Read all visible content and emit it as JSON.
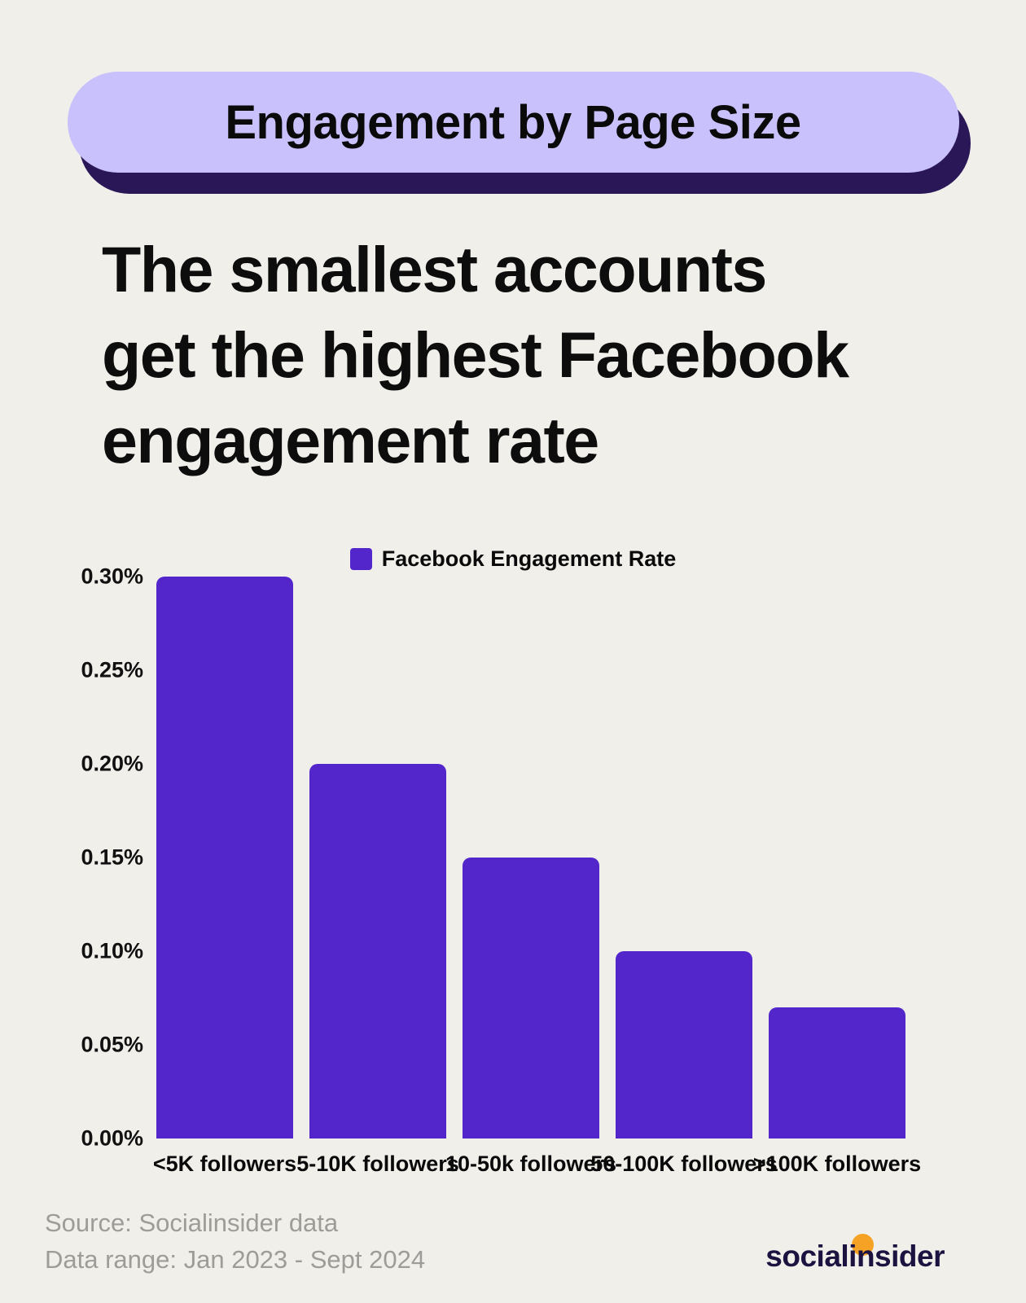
{
  "badge": {
    "title": "Engagement by Page Size"
  },
  "heading": {
    "lines": [
      "The smallest accounts",
      "get the highest Facebook",
      "engagement rate"
    ]
  },
  "chart_data": {
    "type": "bar",
    "legend": "Facebook Engagement Rate",
    "legend_position": "top-center",
    "categories": [
      "<5K followers",
      "5-10K followers",
      "10-50k followers",
      "50-100K followers",
      ">100K followers"
    ],
    "values": [
      0.3,
      0.2,
      0.15,
      0.1,
      0.07
    ],
    "value_unit": "%",
    "ylim": [
      0,
      0.3
    ],
    "ytick_labels": [
      "0.00%",
      "0.05%",
      "0.10%",
      "0.15%",
      "0.20%",
      "0.25%",
      "0.30%"
    ],
    "grid": false,
    "bar_color": "#5226cb"
  },
  "footer": {
    "source_line": "Source: Socialinsider data",
    "range_line": "Data range: Jan 2023 - Sept 2024",
    "logo_text": "socialinsider"
  },
  "colors": {
    "background": "#f1efea",
    "badge_bg": "#c8c1fb",
    "badge_shadow": "#2a1758",
    "bar": "#5226cb",
    "ink": "#0d0d0d",
    "muted": "#9c9c98",
    "logo": "#1d1340",
    "orange": "#f6a325"
  }
}
